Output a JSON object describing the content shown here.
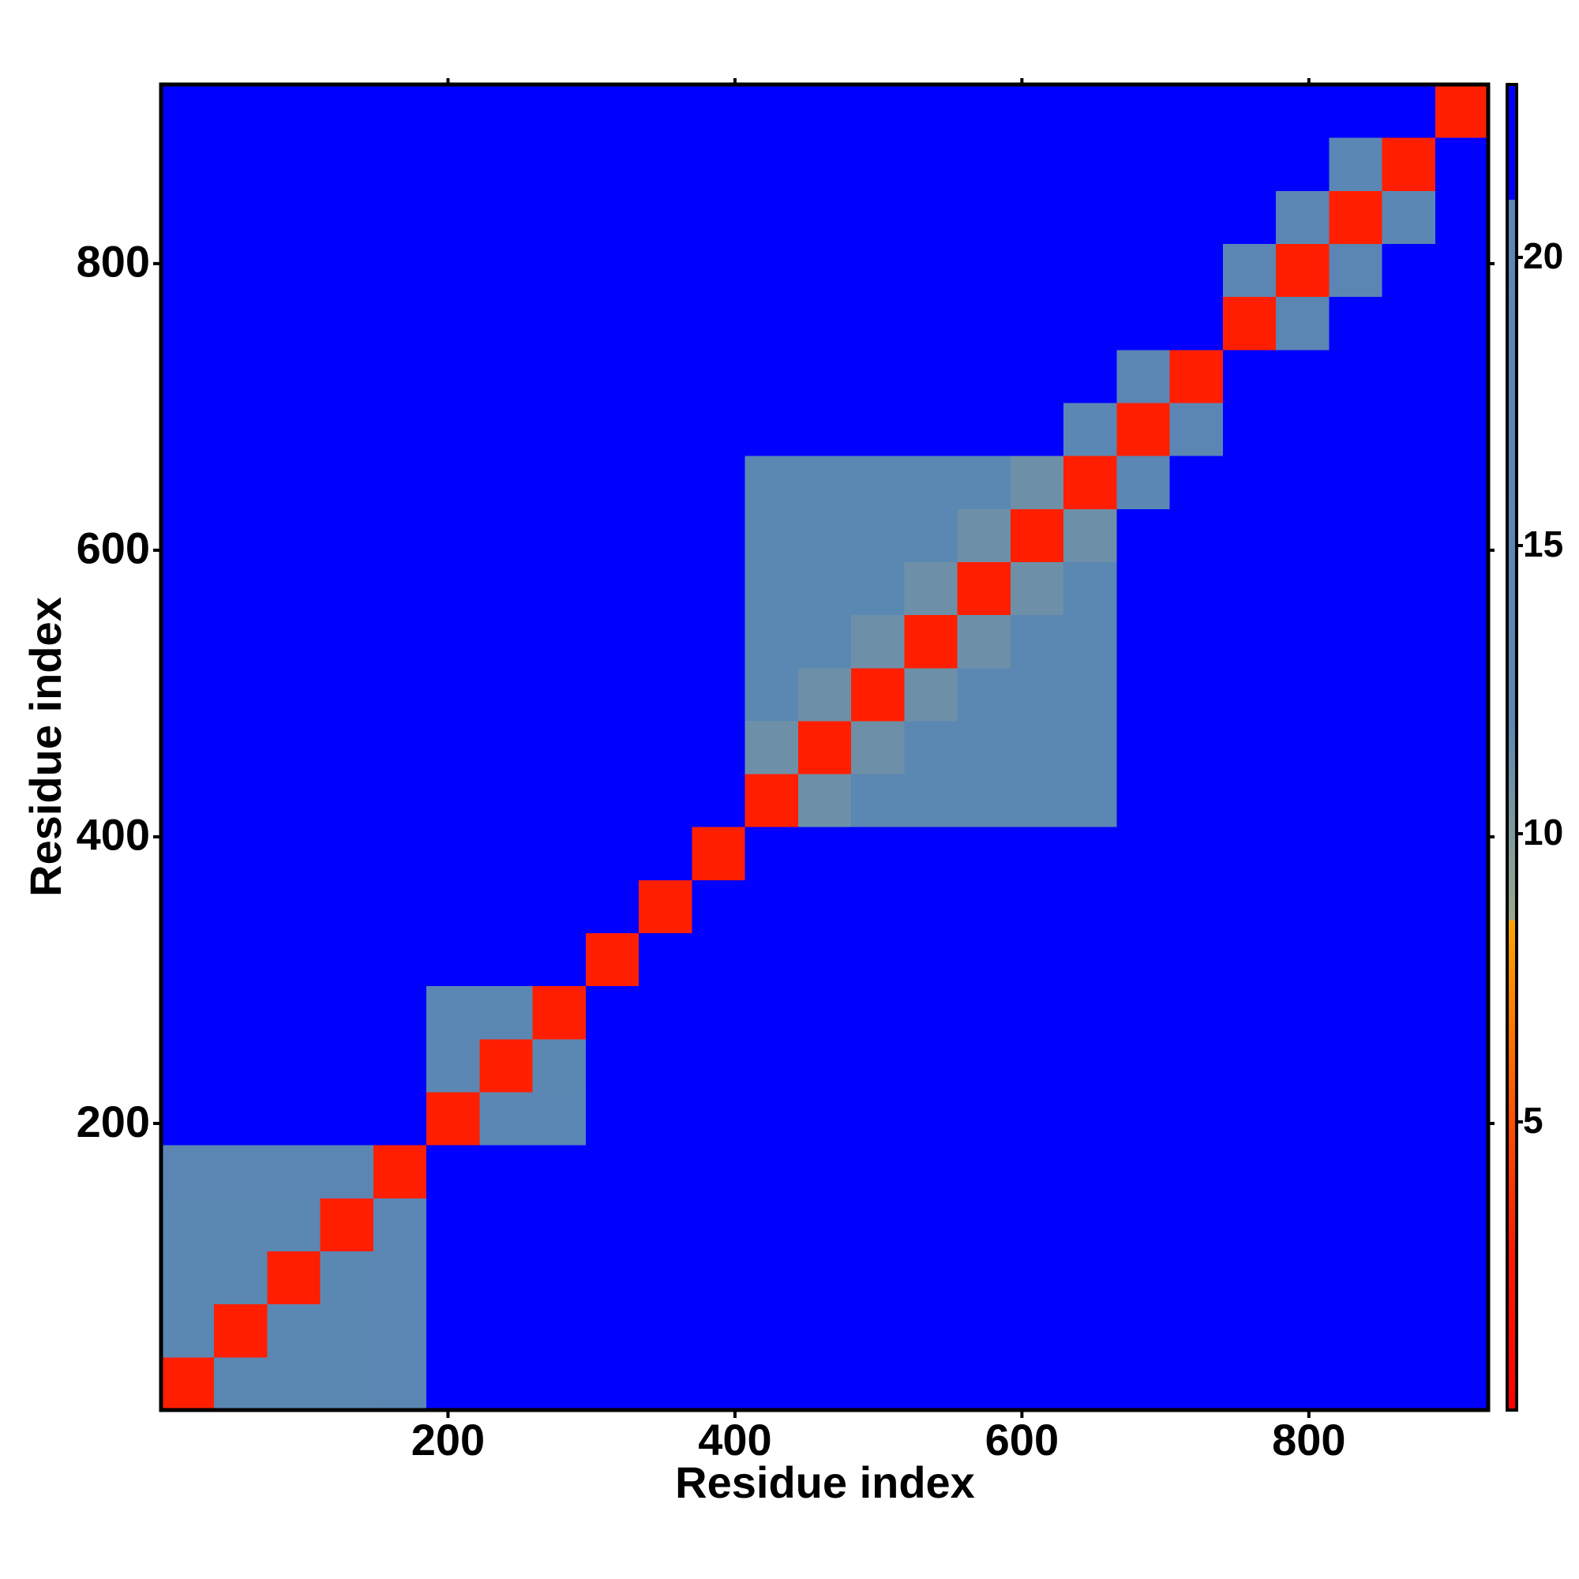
{
  "chart_data": {
    "type": "heatmap",
    "xlabel": "Residue index",
    "ylabel": "Residue index",
    "xlim": [
      0,
      925
    ],
    "ylim": [
      0,
      925
    ],
    "xticks": [
      200,
      400,
      600,
      800
    ],
    "yticks": [
      200,
      400,
      600,
      800
    ],
    "zlim": [
      0,
      23
    ],
    "zticks": [
      5,
      10,
      15,
      20
    ],
    "colorscale": [
      [
        0,
        "#ff0000"
      ],
      [
        2.8,
        "#ff1a00"
      ],
      [
        8.5,
        "#ffa500"
      ],
      [
        8.5,
        "#9aa88c"
      ],
      [
        12,
        "#5b87b3"
      ],
      [
        21,
        "#5b86b5"
      ],
      [
        21,
        "#0000ff"
      ],
      [
        23,
        "#0000ff"
      ]
    ],
    "x_edges": [
      0,
      37,
      74,
      111,
      148,
      185,
      222,
      259,
      296,
      333,
      370,
      407,
      444,
      481,
      518,
      555,
      592,
      629,
      666,
      703,
      740,
      777,
      814,
      851,
      888,
      925
    ],
    "y_edges": [
      0,
      37,
      74,
      111,
      148,
      185,
      222,
      259,
      296,
      333,
      370,
      407,
      444,
      481,
      518,
      555,
      592,
      629,
      666,
      703,
      740,
      777,
      814,
      851,
      888,
      925
    ],
    "z": [
      [
        3,
        13,
        13,
        13,
        18,
        23,
        23,
        23,
        23,
        23,
        23,
        23,
        23,
        23,
        23,
        23,
        23,
        23,
        23,
        23,
        23,
        23,
        23,
        23,
        23
      ],
      [
        13,
        3,
        13,
        13,
        18,
        23,
        23,
        23,
        23,
        23,
        23,
        23,
        23,
        23,
        23,
        23,
        23,
        23,
        23,
        23,
        23,
        23,
        23,
        23,
        23
      ],
      [
        13,
        13,
        3,
        13,
        18,
        23,
        23,
        23,
        23,
        23,
        23,
        23,
        23,
        23,
        23,
        23,
        23,
        23,
        23,
        23,
        23,
        23,
        23,
        23,
        23
      ],
      [
        13,
        13,
        13,
        3,
        18,
        23,
        23,
        23,
        23,
        23,
        23,
        23,
        23,
        23,
        23,
        23,
        23,
        23,
        23,
        23,
        23,
        23,
        23,
        23,
        23
      ],
      [
        18,
        18,
        18,
        18,
        3,
        23,
        23,
        23,
        23,
        23,
        23,
        23,
        23,
        23,
        23,
        23,
        23,
        23,
        23,
        23,
        23,
        23,
        23,
        23,
        23
      ],
      [
        23,
        23,
        23,
        23,
        23,
        3,
        15,
        15,
        23,
        23,
        23,
        23,
        23,
        23,
        23,
        23,
        23,
        23,
        23,
        23,
        23,
        23,
        23,
        23,
        23
      ],
      [
        23,
        23,
        23,
        23,
        23,
        15,
        3,
        12,
        23,
        23,
        23,
        23,
        23,
        23,
        23,
        23,
        23,
        23,
        23,
        23,
        23,
        23,
        23,
        23,
        23
      ],
      [
        23,
        23,
        23,
        23,
        23,
        15,
        12,
        3,
        23,
        23,
        23,
        23,
        23,
        23,
        23,
        23,
        23,
        23,
        23,
        23,
        23,
        23,
        23,
        23,
        23
      ],
      [
        23,
        23,
        23,
        23,
        23,
        23,
        23,
        23,
        3,
        23,
        23,
        23,
        23,
        23,
        23,
        23,
        23,
        23,
        23,
        23,
        23,
        23,
        23,
        23,
        23
      ],
      [
        23,
        23,
        23,
        23,
        23,
        23,
        23,
        23,
        23,
        3,
        23,
        23,
        23,
        23,
        23,
        23,
        23,
        23,
        23,
        23,
        23,
        23,
        23,
        23,
        23
      ],
      [
        23,
        23,
        23,
        23,
        23,
        23,
        23,
        23,
        23,
        23,
        3,
        23,
        23,
        23,
        23,
        23,
        23,
        23,
        23,
        23,
        23,
        23,
        23,
        23,
        23
      ],
      [
        23,
        23,
        23,
        23,
        23,
        23,
        23,
        23,
        23,
        23,
        23,
        3,
        11,
        14,
        14,
        14,
        14,
        14,
        23,
        23,
        23,
        23,
        23,
        23,
        23
      ],
      [
        23,
        23,
        23,
        23,
        23,
        23,
        23,
        23,
        23,
        23,
        23,
        11,
        3,
        11,
        14,
        14,
        14,
        14,
        23,
        23,
        23,
        23,
        23,
        23,
        23
      ],
      [
        23,
        23,
        23,
        23,
        23,
        23,
        23,
        23,
        23,
        23,
        23,
        14,
        11,
        3,
        11,
        14,
        14,
        14,
        23,
        23,
        23,
        23,
        23,
        23,
        23
      ],
      [
        23,
        23,
        23,
        23,
        23,
        23,
        23,
        23,
        23,
        23,
        23,
        14,
        14,
        11,
        3,
        11,
        14,
        14,
        23,
        23,
        23,
        23,
        23,
        23,
        23
      ],
      [
        23,
        23,
        23,
        23,
        23,
        23,
        23,
        23,
        23,
        23,
        23,
        14,
        14,
        14,
        11,
        3,
        11,
        14,
        23,
        23,
        23,
        23,
        23,
        23,
        23
      ],
      [
        23,
        23,
        23,
        23,
        23,
        23,
        23,
        23,
        23,
        23,
        23,
        14,
        14,
        14,
        14,
        11,
        3,
        11,
        23,
        23,
        23,
        23,
        23,
        23,
        23
      ],
      [
        23,
        23,
        23,
        23,
        23,
        23,
        23,
        23,
        23,
        23,
        23,
        14,
        14,
        14,
        14,
        14,
        11,
        3,
        16,
        23,
        23,
        23,
        23,
        23,
        23
      ],
      [
        23,
        23,
        23,
        23,
        23,
        23,
        23,
        23,
        23,
        23,
        23,
        23,
        23,
        23,
        23,
        23,
        23,
        16,
        3,
        17,
        23,
        23,
        23,
        23,
        23
      ],
      [
        23,
        23,
        23,
        23,
        23,
        23,
        23,
        23,
        23,
        23,
        23,
        23,
        23,
        23,
        23,
        23,
        23,
        23,
        17,
        3,
        23,
        23,
        23,
        23,
        23
      ],
      [
        23,
        23,
        23,
        23,
        23,
        23,
        23,
        23,
        23,
        23,
        23,
        23,
        23,
        23,
        23,
        23,
        23,
        23,
        23,
        23,
        3,
        18,
        23,
        23,
        23
      ],
      [
        23,
        23,
        23,
        23,
        23,
        23,
        23,
        23,
        23,
        23,
        23,
        23,
        23,
        23,
        23,
        23,
        23,
        23,
        23,
        23,
        18,
        3,
        18,
        23,
        23
      ],
      [
        23,
        23,
        23,
        23,
        23,
        23,
        23,
        23,
        23,
        23,
        23,
        23,
        23,
        23,
        23,
        23,
        23,
        23,
        23,
        23,
        23,
        18,
        3,
        16,
        23
      ],
      [
        23,
        23,
        23,
        23,
        23,
        23,
        23,
        23,
        23,
        23,
        23,
        23,
        23,
        23,
        23,
        23,
        23,
        23,
        23,
        23,
        23,
        23,
        16,
        3,
        23
      ],
      [
        23,
        23,
        23,
        23,
        23,
        23,
        23,
        23,
        23,
        23,
        23,
        23,
        23,
        23,
        23,
        23,
        23,
        23,
        23,
        23,
        23,
        23,
        23,
        23,
        3
      ]
    ]
  }
}
